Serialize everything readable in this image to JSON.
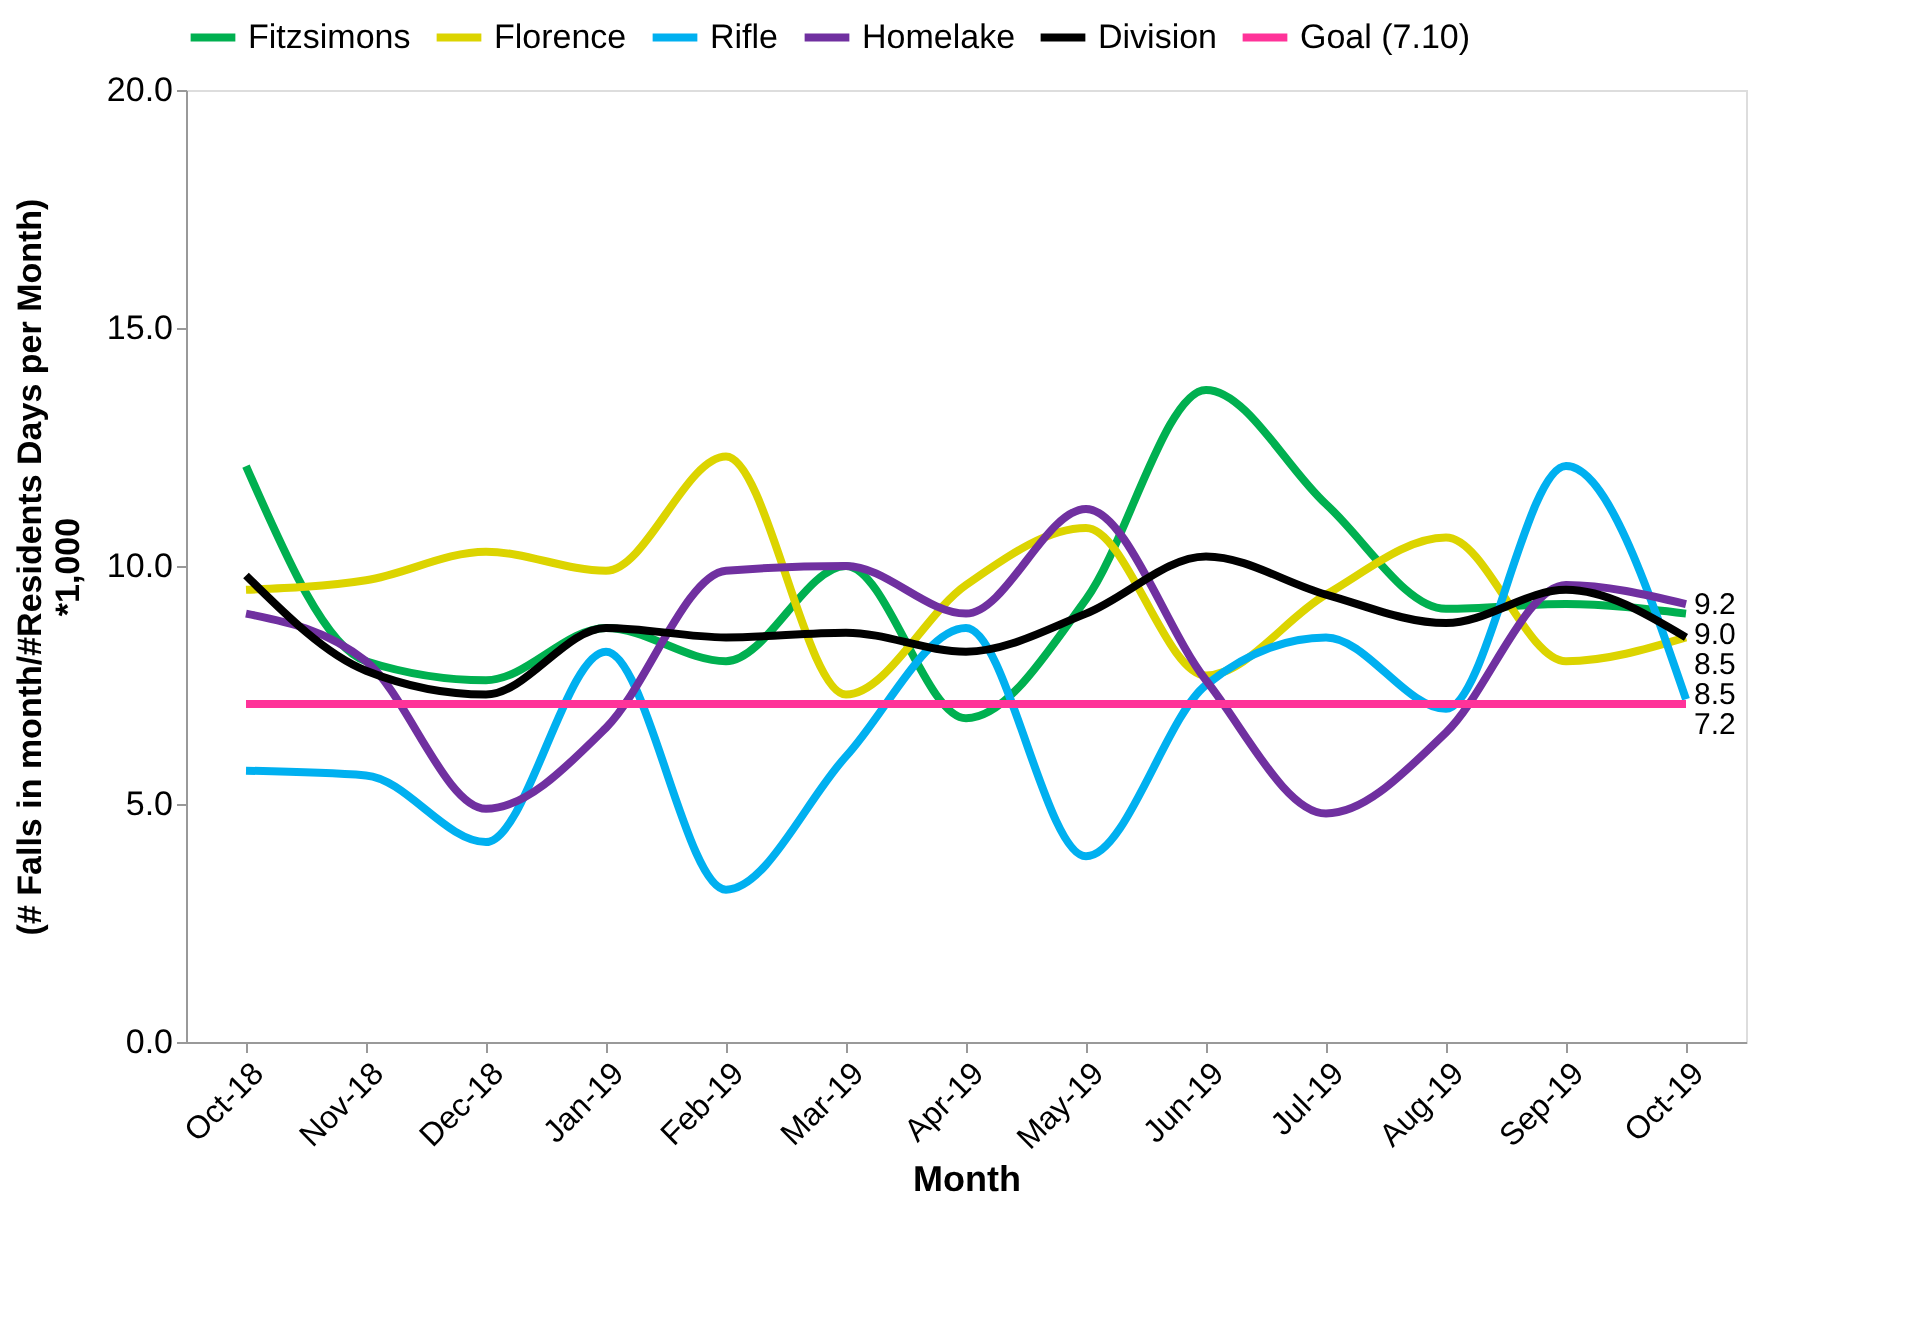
{
  "chart_data": {
    "type": "line",
    "xlabel": "Month",
    "ylabel": "(# Falls in month/#Residents Days per Month) *1,000",
    "categories": [
      "Oct-18",
      "Nov-18",
      "Dec-18",
      "Jan-19",
      "Feb-19",
      "Mar-19",
      "Apr-19",
      "May-19",
      "Jun-19",
      "Jul-19",
      "Aug-19",
      "Sep-19",
      "Oct-19"
    ],
    "ylim": [
      0,
      20
    ],
    "yticks": [
      {
        "value": 0,
        "label": "0.0"
      },
      {
        "value": 5,
        "label": "5.0"
      },
      {
        "value": 10,
        "label": "10.0"
      },
      {
        "value": 15,
        "label": "15.0"
      },
      {
        "value": 20,
        "label": "20.0"
      }
    ],
    "grid": false,
    "legend": "top",
    "marker": "none",
    "line_style": "solid",
    "series": [
      {
        "name": "Fitzsimons",
        "color": "#00b050",
        "values": [
          12.1,
          8.0,
          7.6,
          8.7,
          8.0,
          10.0,
          6.8,
          9.3,
          13.7,
          11.3,
          9.1,
          9.2,
          9.0
        ],
        "value_labels": [
          null,
          null,
          null,
          null,
          null,
          null,
          null,
          null,
          null,
          null,
          null,
          null,
          "9.0"
        ]
      },
      {
        "name": "Florence",
        "color": "#dcd400",
        "values": [
          9.5,
          9.7,
          10.3,
          9.9,
          12.3,
          7.3,
          9.6,
          10.8,
          7.7,
          9.4,
          10.6,
          8.0,
          8.5
        ],
        "value_labels": [
          null,
          null,
          null,
          null,
          null,
          null,
          null,
          null,
          null,
          null,
          null,
          null,
          "8.5"
        ]
      },
      {
        "name": "Rifle",
        "color": "#00b0f0",
        "values": [
          5.7,
          5.6,
          4.2,
          8.2,
          3.2,
          6.0,
          8.7,
          3.9,
          7.5,
          8.5,
          7.0,
          12.1,
          7.2
        ],
        "value_labels": [
          null,
          null,
          null,
          null,
          null,
          null,
          null,
          null,
          null,
          null,
          null,
          null,
          "7.2"
        ]
      },
      {
        "name": "Homelake",
        "color": "#7030a0",
        "values": [
          9.0,
          8.0,
          4.9,
          6.6,
          9.9,
          10.0,
          9.0,
          11.2,
          7.6,
          4.8,
          6.5,
          9.6,
          9.2
        ],
        "value_labels": [
          null,
          null,
          null,
          null,
          null,
          null,
          null,
          null,
          null,
          null,
          null,
          null,
          "9.2"
        ]
      },
      {
        "name": "Division",
        "color": "#000000",
        "values": [
          9.8,
          7.8,
          7.3,
          8.7,
          8.5,
          8.6,
          8.2,
          9.0,
          10.2,
          9.4,
          8.8,
          9.5,
          8.5
        ],
        "value_labels": [
          null,
          null,
          null,
          null,
          null,
          null,
          null,
          null,
          null,
          null,
          null,
          null,
          "8.5"
        ]
      },
      {
        "name": "Goal (7.10)",
        "color": "#ff3399",
        "values": [
          7.1,
          7.1,
          7.1,
          7.1,
          7.1,
          7.1,
          7.1,
          7.1,
          7.1,
          7.1,
          7.1,
          7.1,
          7.1
        ]
      }
    ]
  }
}
